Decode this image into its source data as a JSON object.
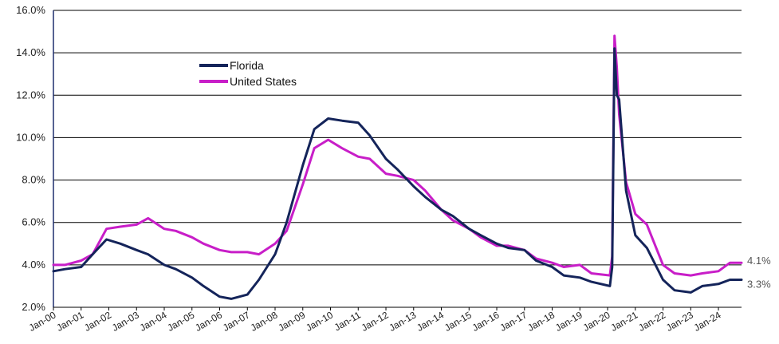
{
  "chart_data": {
    "type": "line",
    "title": "",
    "xlabel": "",
    "ylabel": "",
    "y_tick_labels": [
      "2.0%",
      "4.0%",
      "6.0%",
      "8.0%",
      "10.0%",
      "12.0%",
      "14.0%",
      "16.0%"
    ],
    "y_ticks": [
      2,
      4,
      6,
      8,
      10,
      12,
      14,
      16
    ],
    "ylim": [
      2,
      16
    ],
    "x_tick_labels": [
      "Jan-00",
      "Jan-01",
      "Jan-02",
      "Jan-03",
      "Jan-04",
      "Jan-05",
      "Jan-06",
      "Jan-07",
      "Jan-08",
      "Jan-09",
      "Jan-10",
      "Jan-11",
      "Jan-12",
      "Jan-13",
      "Jan-14",
      "Jan-15",
      "Jan-16",
      "Jan-17",
      "Jan-18",
      "Jan-19",
      "Jan-20",
      "Jan-21",
      "Jan-22",
      "Jan-23",
      "Jan-24"
    ],
    "xlim": [
      "2000-01",
      "2024-11"
    ],
    "grid": "horizontal",
    "legend_position": "top-left",
    "series": [
      {
        "name": "Florida",
        "color": "#14245a",
        "end_label": "3.3%",
        "points": [
          [
            "2000-01",
            3.7
          ],
          [
            "2000-06",
            3.8
          ],
          [
            "2001-01",
            3.9
          ],
          [
            "2001-06",
            4.5
          ],
          [
            "2001-12",
            5.2
          ],
          [
            "2002-06",
            5.0
          ],
          [
            "2003-01",
            4.7
          ],
          [
            "2003-06",
            4.5
          ],
          [
            "2004-01",
            4.0
          ],
          [
            "2004-06",
            3.8
          ],
          [
            "2005-01",
            3.4
          ],
          [
            "2005-06",
            3.0
          ],
          [
            "2006-01",
            2.5
          ],
          [
            "2006-06",
            2.4
          ],
          [
            "2007-01",
            2.6
          ],
          [
            "2007-06",
            3.3
          ],
          [
            "2008-01",
            4.5
          ],
          [
            "2008-06",
            6.0
          ],
          [
            "2009-01",
            8.7
          ],
          [
            "2009-06",
            10.4
          ],
          [
            "2009-12",
            10.9
          ],
          [
            "2010-06",
            10.8
          ],
          [
            "2011-01",
            10.7
          ],
          [
            "2011-06",
            10.1
          ],
          [
            "2012-01",
            9.0
          ],
          [
            "2012-06",
            8.5
          ],
          [
            "2013-01",
            7.7
          ],
          [
            "2013-06",
            7.2
          ],
          [
            "2014-01",
            6.6
          ],
          [
            "2014-06",
            6.3
          ],
          [
            "2015-01",
            5.7
          ],
          [
            "2015-06",
            5.4
          ],
          [
            "2016-01",
            5.0
          ],
          [
            "2016-06",
            4.8
          ],
          [
            "2017-01",
            4.7
          ],
          [
            "2017-06",
            4.2
          ],
          [
            "2018-01",
            3.9
          ],
          [
            "2018-06",
            3.5
          ],
          [
            "2019-01",
            3.4
          ],
          [
            "2019-06",
            3.2
          ],
          [
            "2020-02",
            3.0
          ],
          [
            "2020-03",
            3.9
          ],
          [
            "2020-04",
            14.2
          ],
          [
            "2020-05",
            12.0
          ],
          [
            "2020-06",
            11.8
          ],
          [
            "2020-09",
            7.5
          ],
          [
            "2021-01",
            5.4
          ],
          [
            "2021-06",
            4.8
          ],
          [
            "2022-01",
            3.3
          ],
          [
            "2022-06",
            2.8
          ],
          [
            "2023-01",
            2.7
          ],
          [
            "2023-06",
            3.0
          ],
          [
            "2024-01",
            3.1
          ],
          [
            "2024-06",
            3.3
          ],
          [
            "2024-11",
            3.3
          ]
        ]
      },
      {
        "name": "United States",
        "color": "#c81ec8",
        "end_label": "4.1%",
        "points": [
          [
            "2000-01",
            4.0
          ],
          [
            "2000-06",
            4.0
          ],
          [
            "2001-01",
            4.2
          ],
          [
            "2001-06",
            4.5
          ],
          [
            "2001-12",
            5.7
          ],
          [
            "2002-06",
            5.8
          ],
          [
            "2003-01",
            5.9
          ],
          [
            "2003-06",
            6.2
          ],
          [
            "2004-01",
            5.7
          ],
          [
            "2004-06",
            5.6
          ],
          [
            "2005-01",
            5.3
          ],
          [
            "2005-06",
            5.0
          ],
          [
            "2006-01",
            4.7
          ],
          [
            "2006-06",
            4.6
          ],
          [
            "2007-01",
            4.6
          ],
          [
            "2007-06",
            4.5
          ],
          [
            "2008-01",
            5.0
          ],
          [
            "2008-06",
            5.6
          ],
          [
            "2009-01",
            7.8
          ],
          [
            "2009-06",
            9.5
          ],
          [
            "2009-12",
            9.9
          ],
          [
            "2010-06",
            9.5
          ],
          [
            "2011-01",
            9.1
          ],
          [
            "2011-06",
            9.0
          ],
          [
            "2012-01",
            8.3
          ],
          [
            "2012-06",
            8.2
          ],
          [
            "2013-01",
            8.0
          ],
          [
            "2013-06",
            7.5
          ],
          [
            "2014-01",
            6.6
          ],
          [
            "2014-06",
            6.1
          ],
          [
            "2015-01",
            5.7
          ],
          [
            "2015-06",
            5.3
          ],
          [
            "2016-01",
            4.9
          ],
          [
            "2016-06",
            4.9
          ],
          [
            "2017-01",
            4.7
          ],
          [
            "2017-06",
            4.3
          ],
          [
            "2018-01",
            4.1
          ],
          [
            "2018-06",
            3.9
          ],
          [
            "2019-01",
            4.0
          ],
          [
            "2019-06",
            3.6
          ],
          [
            "2020-02",
            3.5
          ],
          [
            "2020-03",
            4.4
          ],
          [
            "2020-04",
            14.8
          ],
          [
            "2020-05",
            13.3
          ],
          [
            "2020-06",
            11.1
          ],
          [
            "2020-09",
            7.9
          ],
          [
            "2021-01",
            6.4
          ],
          [
            "2021-06",
            5.9
          ],
          [
            "2022-01",
            4.0
          ],
          [
            "2022-06",
            3.6
          ],
          [
            "2023-01",
            3.5
          ],
          [
            "2023-06",
            3.6
          ],
          [
            "2024-01",
            3.7
          ],
          [
            "2024-06",
            4.1
          ],
          [
            "2024-11",
            4.1
          ]
        ]
      }
    ]
  }
}
